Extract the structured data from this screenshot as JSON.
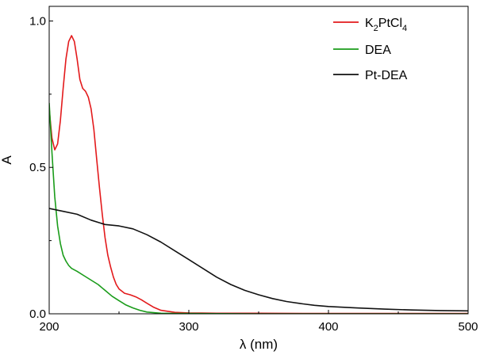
{
  "chart_data": {
    "type": "line",
    "xlabel": "λ (nm)",
    "ylabel": "A",
    "xlim": [
      200,
      500
    ],
    "ylim": [
      0.0,
      1.05
    ],
    "x_ticks": [
      {
        "value": 200,
        "label": "200"
      },
      {
        "value": 300,
        "label": "300"
      },
      {
        "value": 400,
        "label": "400"
      },
      {
        "value": 500,
        "label": "500"
      }
    ],
    "y_ticks": [
      {
        "value": 0.0,
        "label": "0.0"
      },
      {
        "value": 0.5,
        "label": "0.5"
      },
      {
        "value": 1.0,
        "label": "1.0"
      }
    ],
    "grid": false,
    "legend_position": "top-right",
    "series": [
      {
        "name": "K2PtCl4",
        "legend_main": "K",
        "legend_sub1": "2",
        "legend_mid": "PtCl",
        "legend_sub2": "4",
        "color": "#e31a1c",
        "x": [
          200,
          202,
          204,
          206,
          208,
          210,
          212,
          214,
          216,
          218,
          220,
          222,
          224,
          226,
          228,
          230,
          232,
          234,
          236,
          238,
          240,
          242,
          244,
          246,
          248,
          250,
          254,
          258,
          262,
          266,
          270,
          275,
          280,
          290,
          300,
          320,
          350,
          400,
          450,
          500
        ],
        "y": [
          0.7,
          0.6,
          0.56,
          0.58,
          0.66,
          0.77,
          0.87,
          0.93,
          0.95,
          0.93,
          0.87,
          0.8,
          0.77,
          0.76,
          0.74,
          0.7,
          0.63,
          0.53,
          0.43,
          0.34,
          0.26,
          0.2,
          0.16,
          0.125,
          0.1,
          0.085,
          0.07,
          0.065,
          0.058,
          0.048,
          0.036,
          0.022,
          0.012,
          0.005,
          0.003,
          0.002,
          0.002,
          0.001,
          0.001,
          0.001
        ]
      },
      {
        "name": "DEA",
        "color": "#1a9c1a",
        "x": [
          200,
          202,
          204,
          206,
          208,
          210,
          212,
          214,
          216,
          218,
          220,
          225,
          230,
          235,
          240,
          245,
          250,
          255,
          260,
          265,
          270,
          280,
          290,
          300,
          350,
          400,
          450,
          500
        ],
        "y": [
          0.72,
          0.55,
          0.4,
          0.3,
          0.24,
          0.2,
          0.18,
          0.165,
          0.155,
          0.15,
          0.145,
          0.13,
          0.115,
          0.1,
          0.08,
          0.06,
          0.045,
          0.03,
          0.02,
          0.012,
          0.006,
          0.002,
          0.001,
          0.001,
          0.0,
          0.0,
          0.0,
          0.0
        ]
      },
      {
        "name": "Pt-DEA",
        "color": "#111111",
        "x": [
          200,
          210,
          220,
          230,
          240,
          250,
          260,
          270,
          280,
          290,
          300,
          310,
          320,
          330,
          340,
          350,
          360,
          370,
          380,
          390,
          400,
          420,
          440,
          460,
          480,
          500
        ],
        "y": [
          0.36,
          0.35,
          0.34,
          0.32,
          0.305,
          0.3,
          0.29,
          0.27,
          0.245,
          0.215,
          0.185,
          0.155,
          0.125,
          0.1,
          0.08,
          0.065,
          0.052,
          0.042,
          0.035,
          0.029,
          0.025,
          0.02,
          0.016,
          0.013,
          0.011,
          0.01
        ]
      }
    ]
  }
}
